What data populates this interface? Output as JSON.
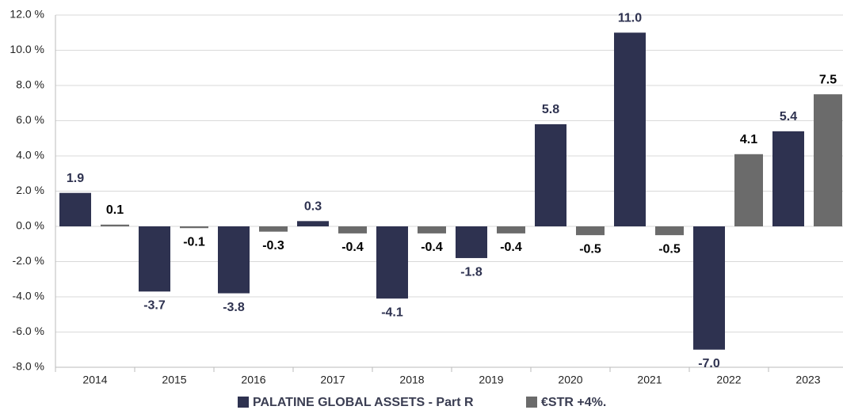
{
  "chart_data": {
    "type": "bar",
    "categories": [
      "2014",
      "2015",
      "2016",
      "2017",
      "2018",
      "2019",
      "2020",
      "2021",
      "2022",
      "2023"
    ],
    "series": [
      {
        "name": "PALATINE GLOBAL ASSETS - Part R",
        "color": "#2e3250",
        "label_color": "#2e3250",
        "values": [
          1.9,
          -3.7,
          -3.8,
          0.3,
          -4.1,
          -1.8,
          5.8,
          11.0,
          -7.0,
          5.4
        ],
        "value_labels": [
          "1.9",
          "-3.7",
          "-3.8",
          "0.3",
          "-4.1",
          "-1.8",
          "5.8",
          "11.0",
          "-7.0",
          "5.4"
        ]
      },
      {
        "name": "€STR +4%.",
        "color": "#6b6b6b",
        "label_color": "#000000",
        "values": [
          0.1,
          -0.1,
          -0.3,
          -0.4,
          -0.4,
          -0.4,
          -0.5,
          -0.5,
          4.1,
          7.5
        ],
        "value_labels": [
          "0.1",
          "-0.1",
          "-0.3",
          "-0.4",
          "-0.4",
          "-0.4",
          "-0.5",
          "-0.5",
          "4.1",
          "7.5"
        ]
      }
    ],
    "ylim": [
      -8,
      12
    ],
    "yticks": [
      {
        "value": -8,
        "label": "-8.0 %"
      },
      {
        "value": -6,
        "label": "-6.0 %"
      },
      {
        "value": -4,
        "label": "-4.0 %"
      },
      {
        "value": -2,
        "label": "-2.0 %"
      },
      {
        "value": 0,
        "label": "0.0 %"
      },
      {
        "value": 2,
        "label": "2.0 %"
      },
      {
        "value": 4,
        "label": "4.0 %"
      },
      {
        "value": 6,
        "label": "6.0 %"
      },
      {
        "value": 8,
        "label": "8.0 %"
      },
      {
        "value": 10,
        "label": "10.0 %"
      },
      {
        "value": 12,
        "label": "12.0 %"
      }
    ],
    "grid": true,
    "legend": "bottom"
  }
}
